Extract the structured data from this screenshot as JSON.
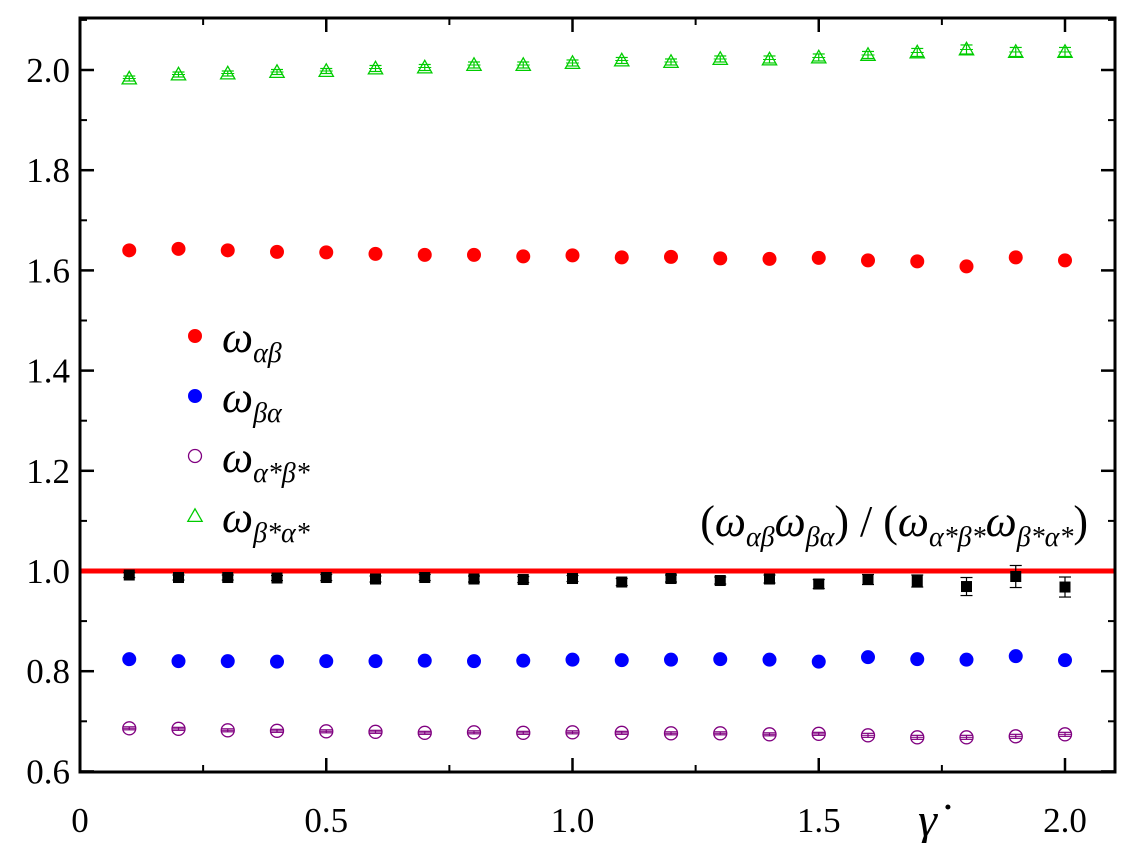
{
  "chart_data": {
    "type": "scatter",
    "title": "",
    "xlabel": "γ̇",
    "ylabel": "",
    "xlim": [
      0,
      2.1
    ],
    "ylim": [
      0.6,
      2.1
    ],
    "x_ticks": [
      0,
      0.5,
      1.0,
      1.5,
      2.0
    ],
    "x_tick_labels": [
      "0",
      "0.5",
      "1.0",
      "1.5",
      "2.0"
    ],
    "y_ticks": [
      0.6,
      0.8,
      1.0,
      1.2,
      1.4,
      1.6,
      1.8,
      2.0
    ],
    "y_tick_labels": [
      "0.6",
      "0.8",
      "1.0",
      "1.2",
      "1.4",
      "1.6",
      "1.8",
      "2.0"
    ],
    "grid": false,
    "legend_position": "left-middle",
    "x": [
      0.1,
      0.2,
      0.3,
      0.4,
      0.5,
      0.6,
      0.7,
      0.8,
      0.9,
      1.0,
      1.1,
      1.2,
      1.3,
      1.4,
      1.5,
      1.6,
      1.7,
      1.8,
      1.9,
      2.0
    ],
    "series": [
      {
        "name": "ω_αβ",
        "legend_main": "ω",
        "legend_sub": "αβ",
        "marker": "filled-circle",
        "color": "#ff0000",
        "values": [
          1.64,
          1.643,
          1.64,
          1.637,
          1.636,
          1.633,
          1.631,
          1.631,
          1.628,
          1.63,
          1.626,
          1.627,
          1.624,
          1.623,
          1.625,
          1.62,
          1.618,
          1.608,
          1.626,
          1.62
        ],
        "errors": [
          0.004,
          0.004,
          0.004,
          0.004,
          0.004,
          0.004,
          0.004,
          0.004,
          0.004,
          0.004,
          0.004,
          0.004,
          0.004,
          0.004,
          0.005,
          0.005,
          0.005,
          0.005,
          0.005,
          0.005
        ]
      },
      {
        "name": "ω_βα",
        "legend_main": "ω",
        "legend_sub": "βα",
        "marker": "filled-circle",
        "color": "#0000ff",
        "values": [
          0.824,
          0.82,
          0.82,
          0.819,
          0.82,
          0.82,
          0.821,
          0.82,
          0.821,
          0.823,
          0.822,
          0.823,
          0.824,
          0.823,
          0.819,
          0.828,
          0.824,
          0.823,
          0.83,
          0.822
        ],
        "errors": [
          0.003,
          0.003,
          0.003,
          0.003,
          0.003,
          0.003,
          0.003,
          0.003,
          0.003,
          0.003,
          0.003,
          0.003,
          0.003,
          0.003,
          0.004,
          0.004,
          0.004,
          0.004,
          0.004,
          0.004
        ]
      },
      {
        "name": "ω_α*β*",
        "legend_main": "ω",
        "legend_sub": "α*β*",
        "marker": "open-circle",
        "color": "#800080",
        "values": [
          0.686,
          0.685,
          0.682,
          0.681,
          0.68,
          0.679,
          0.677,
          0.678,
          0.677,
          0.678,
          0.677,
          0.676,
          0.676,
          0.674,
          0.675,
          0.672,
          0.668,
          0.668,
          0.67,
          0.674
        ],
        "errors": [
          0.003,
          0.003,
          0.003,
          0.003,
          0.003,
          0.003,
          0.003,
          0.003,
          0.003,
          0.003,
          0.003,
          0.003,
          0.003,
          0.003,
          0.003,
          0.004,
          0.004,
          0.004,
          0.004,
          0.004
        ]
      },
      {
        "name": "ω_β*α*",
        "legend_main": "ω",
        "legend_sub": "β*α*",
        "marker": "open-triangle",
        "color": "#00cc00",
        "values": [
          1.983,
          1.991,
          1.993,
          1.996,
          1.998,
          2.003,
          2.005,
          2.01,
          2.01,
          2.014,
          2.019,
          2.016,
          2.022,
          2.021,
          2.025,
          2.03,
          2.035,
          2.041,
          2.036,
          2.036
        ],
        "errors": [
          0.005,
          0.005,
          0.005,
          0.005,
          0.005,
          0.006,
          0.006,
          0.006,
          0.006,
          0.006,
          0.006,
          0.006,
          0.006,
          0.007,
          0.007,
          0.007,
          0.008,
          0.009,
          0.009,
          0.009
        ]
      },
      {
        "name": "(ω_αβ ω_βα)/(ω_α*β* ω_β*α*)",
        "marker": "filled-square",
        "color": "#000000",
        "values": [
          0.992,
          0.987,
          0.987,
          0.986,
          0.987,
          0.984,
          0.987,
          0.984,
          0.983,
          0.985,
          0.978,
          0.985,
          0.981,
          0.984,
          0.974,
          0.983,
          0.98,
          0.969,
          0.989,
          0.968
        ],
        "errors": [
          0.005,
          0.005,
          0.005,
          0.005,
          0.006,
          0.006,
          0.006,
          0.006,
          0.006,
          0.006,
          0.007,
          0.007,
          0.007,
          0.008,
          0.009,
          0.01,
          0.012,
          0.018,
          0.022,
          0.02
        ]
      }
    ],
    "reference_line": {
      "y": 1.0,
      "color": "#ff0000"
    },
    "annotation": {
      "text": "(ω_αβ ω_βα) / (ω_α*β* ω_β*α*)",
      "parts": [
        {
          "t": "(",
          "sub": false
        },
        {
          "t": "ω",
          "sub": false
        },
        {
          "t": "αβ",
          "sub": true
        },
        {
          "t": "ω",
          "sub": false
        },
        {
          "t": "βα",
          "sub": true
        },
        {
          "t": ") / (",
          "sub": false
        },
        {
          "t": "ω",
          "sub": false
        },
        {
          "t": "α*β*",
          "sub": true
        },
        {
          "t": "ω",
          "sub": false
        },
        {
          "t": "β*α*",
          "sub": true
        },
        {
          "t": ")",
          "sub": false
        }
      ]
    }
  }
}
